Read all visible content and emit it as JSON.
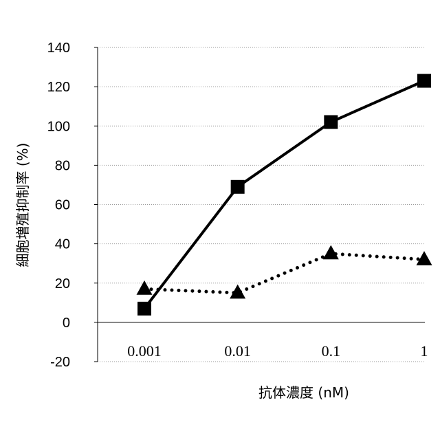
{
  "chart_data": {
    "type": "line",
    "xlabel": "抗体濃度 (nM)",
    "ylabel": "細胞増殖抑制率 (%)",
    "categories": [
      "0.001",
      "0.01",
      "0.1",
      "1"
    ],
    "ylim": [
      -20,
      140
    ],
    "yticks": [
      "140",
      "120",
      "100",
      "80",
      "60",
      "40",
      "20",
      "0",
      "-20"
    ],
    "grid": true,
    "series": [
      {
        "values": [
          7,
          69,
          102,
          123
        ],
        "marker": "square",
        "line": "solid",
        "color": "#000000"
      },
      {
        "values": [
          17,
          15,
          35,
          32
        ],
        "marker": "triangle",
        "line": "dotted",
        "color": "#000000"
      }
    ]
  }
}
